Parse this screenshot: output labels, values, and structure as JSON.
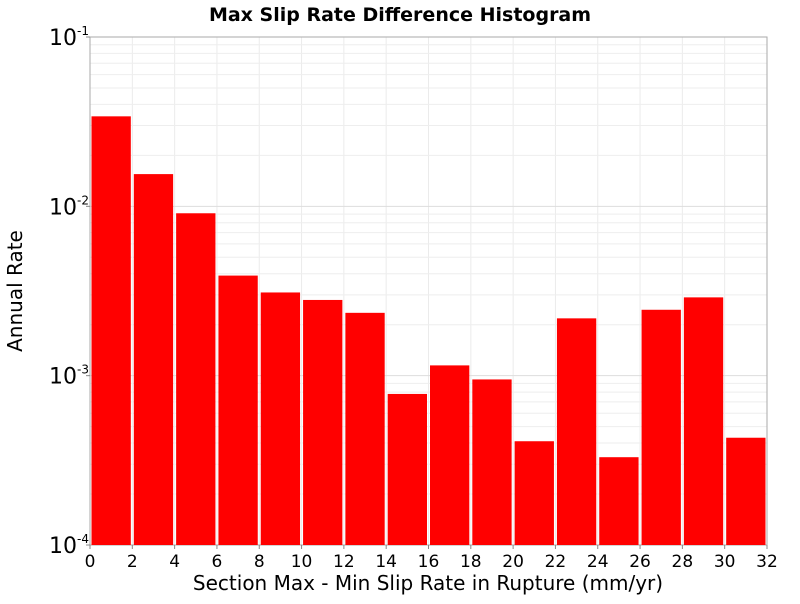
{
  "chart_data": {
    "type": "bar",
    "title": "Max Slip Rate Difference Histogram",
    "xlabel": "Section Max - Min Slip Rate in Rupture (mm/yr)",
    "ylabel": "Annual Rate",
    "xlim": [
      0,
      32
    ],
    "ylim": [
      0.0001,
      0.1
    ],
    "yscale": "log",
    "bin_width": 2,
    "grid": true,
    "legend": "none",
    "bar_color": "#ff0000",
    "x_ticks": [
      "0",
      "2",
      "4",
      "6",
      "8",
      "10",
      "12",
      "14",
      "16",
      "18",
      "20",
      "22",
      "24",
      "26",
      "28",
      "30",
      "32"
    ],
    "y_ticks": [
      {
        "base": "10",
        "exp": "-1",
        "value": 0.1
      },
      {
        "base": "10",
        "exp": "-2",
        "value": 0.01
      },
      {
        "base": "10",
        "exp": "-3",
        "value": 0.001
      },
      {
        "base": "10",
        "exp": "-4",
        "value": 0.0001
      }
    ],
    "bins": [
      {
        "x0": 0,
        "x1": 2,
        "value": 0.034
      },
      {
        "x0": 2,
        "x1": 4,
        "value": 0.0155
      },
      {
        "x0": 4,
        "x1": 6,
        "value": 0.0091
      },
      {
        "x0": 6,
        "x1": 8,
        "value": 0.0039
      },
      {
        "x0": 8,
        "x1": 10,
        "value": 0.0031
      },
      {
        "x0": 10,
        "x1": 12,
        "value": 0.0028
      },
      {
        "x0": 12,
        "x1": 14,
        "value": 0.00235
      },
      {
        "x0": 14,
        "x1": 16,
        "value": 0.00078
      },
      {
        "x0": 16,
        "x1": 18,
        "value": 0.00115
      },
      {
        "x0": 18,
        "x1": 20,
        "value": 0.00095
      },
      {
        "x0": 20,
        "x1": 22,
        "value": 0.00041
      },
      {
        "x0": 22,
        "x1": 24,
        "value": 0.00218
      },
      {
        "x0": 24,
        "x1": 26,
        "value": 0.00033
      },
      {
        "x0": 26,
        "x1": 28,
        "value": 0.00245
      },
      {
        "x0": 28,
        "x1": 30,
        "value": 0.0029
      },
      {
        "x0": 30,
        "x1": 32,
        "value": 0.00043
      }
    ]
  }
}
